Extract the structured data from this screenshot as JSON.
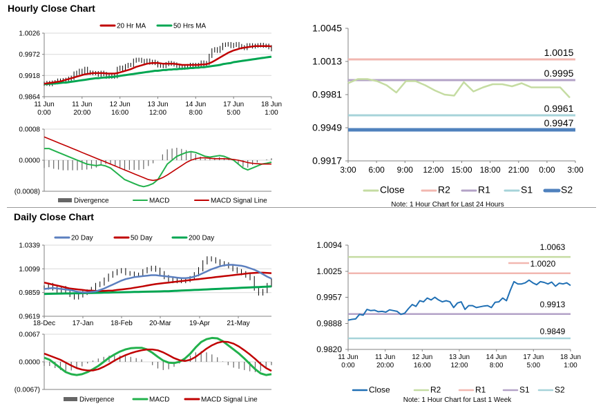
{
  "sections": {
    "hourly_title": "Hourly Close Chart",
    "daily_title": "Daily Close Chart"
  },
  "colors": {
    "ma_red": "#c00000",
    "ma_green": "#00a651",
    "ma_blue": "#5b7fbf",
    "macd_green": "#22b14c",
    "signal_red": "#c00000",
    "divergence": "#666666",
    "close_hourly": "#c5dca2",
    "close_daily": "#1f6fb4",
    "r2_hourly": "#f2b7b0",
    "r1_hourly": "#b3a2c7",
    "s1_hourly": "#a6d3d9",
    "s2_hourly": "#4f81bd",
    "r2_daily": "#c5dca2",
    "r1_daily": "#f2b7b0",
    "s1_daily": "#b3a2c7",
    "s2_daily": "#a6d3d9"
  },
  "chart_data": [
    {
      "id": "hourly_price",
      "type": "line",
      "title": "Hourly Close Chart",
      "legend": [
        "20 Hr MA",
        "50 Hrs MA"
      ],
      "x_ticks": [
        [
          "11 Jun",
          "0:00"
        ],
        [
          "11 Jun",
          "20:00"
        ],
        [
          "12 Jun",
          "16:00"
        ],
        [
          "13 Jun",
          "12:00"
        ],
        [
          "14 Jun",
          "8:00"
        ],
        [
          "17 Jun",
          "5:00"
        ],
        [
          "18 Jun",
          "1:00"
        ]
      ],
      "y_ticks": [
        "1.0026",
        "0.9972",
        "0.9918",
        "0.9864"
      ],
      "ylim": [
        0.9864,
        1.0026
      ],
      "close": [
        0.9897,
        0.9899,
        0.9896,
        0.99,
        0.9901,
        0.9905,
        0.9905,
        0.9906,
        0.9907,
        0.991,
        0.9912,
        0.9923,
        0.9925,
        0.993,
        0.9925,
        0.9935,
        0.9926,
        0.9925,
        0.9924,
        0.9924,
        0.992,
        0.9925,
        0.9922,
        0.9915,
        0.9917,
        0.9915,
        0.9916,
        0.9935,
        0.9938,
        0.9935,
        0.9942,
        0.9945,
        0.9945,
        0.9956,
        0.9958,
        0.9958,
        0.9955,
        0.9952,
        0.9956,
        0.9951,
        0.9953,
        0.995,
        0.9944,
        0.9943,
        0.9942,
        0.9947,
        0.995,
        0.9948,
        0.9946,
        0.9943,
        0.9939,
        0.9938,
        0.9941,
        0.9942,
        0.9945,
        0.9943,
        0.9945,
        0.9944,
        0.9951,
        0.9944,
        0.995,
        0.9968,
        0.9982,
        0.9985,
        0.9981,
        0.9988,
        0.9996,
        0.9997,
        0.9998,
        0.9993,
        0.9996,
        0.9998,
        0.9993,
        0.999,
        0.9988,
        0.9995,
        0.9995,
        0.9992,
        0.9994,
        0.9995,
        0.9996,
        0.9994,
        0.9994,
        0.999,
        0.9985
      ],
      "ma20": [
        0.9897,
        0.9898,
        0.9899,
        0.99,
        0.9901,
        0.9902,
        0.9903,
        0.9905,
        0.9907,
        0.9909,
        0.9911,
        0.9913,
        0.9915,
        0.9917,
        0.9919,
        0.9921,
        0.9922,
        0.9923,
        0.9924,
        0.9924,
        0.9924,
        0.9924,
        0.9924,
        0.9923,
        0.9923,
        0.9923,
        0.9923,
        0.9924,
        0.9926,
        0.9928,
        0.993,
        0.9932,
        0.9934,
        0.9937,
        0.994,
        0.9942,
        0.9944,
        0.9946,
        0.9948,
        0.9949,
        0.995,
        0.995,
        0.995,
        0.9949,
        0.9948,
        0.9948,
        0.9948,
        0.9948,
        0.9948,
        0.9947,
        0.9946,
        0.9945,
        0.9945,
        0.9945,
        0.9945,
        0.9945,
        0.9945,
        0.9945,
        0.9946,
        0.9946,
        0.9947,
        0.9949,
        0.9952,
        0.9956,
        0.996,
        0.9964,
        0.9968,
        0.9972,
        0.9976,
        0.9979,
        0.9982,
        0.9984,
        0.9986,
        0.9988,
        0.9989,
        0.999,
        0.9991,
        0.9992,
        0.9993,
        0.9993,
        0.9993,
        0.9993,
        0.9993,
        0.9993,
        0.9992
      ],
      "ma50": [
        0.9896,
        0.9896,
        0.9897,
        0.9897,
        0.9898,
        0.9898,
        0.9899,
        0.99,
        0.99,
        0.9901,
        0.9902,
        0.9903,
        0.9904,
        0.9905,
        0.9906,
        0.9907,
        0.9908,
        0.9909,
        0.991,
        0.9911,
        0.9911,
        0.9912,
        0.9913,
        0.9913,
        0.9914,
        0.9914,
        0.9915,
        0.9916,
        0.9917,
        0.9918,
        0.9919,
        0.992,
        0.9921,
        0.9922,
        0.9923,
        0.9924,
        0.9925,
        0.9926,
        0.9927,
        0.9928,
        0.9929,
        0.993,
        0.993,
        0.9931,
        0.9932,
        0.9932,
        0.9933,
        0.9933,
        0.9934,
        0.9934,
        0.9935,
        0.9935,
        0.9936,
        0.9936,
        0.9937,
        0.9937,
        0.9938,
        0.9938,
        0.9939,
        0.9939,
        0.994,
        0.9941,
        0.9942,
        0.9943,
        0.9944,
        0.9945,
        0.9947,
        0.9948,
        0.9949,
        0.995,
        0.9952,
        0.9953,
        0.9954,
        0.9955,
        0.9956,
        0.9957,
        0.9958,
        0.9959,
        0.996,
        0.9961,
        0.9962,
        0.9963,
        0.9964,
        0.9965,
        0.9966
      ]
    },
    {
      "id": "hourly_macd",
      "type": "line",
      "legend": [
        "Divergence",
        "MACD",
        "MACD Signal Line"
      ],
      "y_ticks": [
        "0.0008",
        "0.0000",
        "(0.0008)"
      ],
      "ylim": [
        -0.0008,
        0.0008
      ],
      "macd": [
        0.0003,
        0.0003,
        0.00025,
        0.0002,
        0.00015,
        0.0001,
        5e-05,
        0.0,
        -5e-05,
        -0.0001,
        -0.00012,
        -0.00014,
        -0.00012,
        -0.00015,
        -0.0002,
        -0.0003,
        -0.0004,
        -0.0005,
        -0.00055,
        -0.0006,
        -0.00065,
        -0.00068,
        -0.00065,
        -0.0006,
        -0.0005,
        -0.0003,
        -0.0001,
        0.0,
        0.0001,
        0.00015,
        0.0002,
        0.00022,
        0.0002,
        0.00015,
        0.0001,
        8e-05,
        0.0001,
        0.00012,
        0.0001,
        5e-05,
        0.0,
        -0.0001,
        -0.0002,
        -0.00025,
        -0.0002,
        -0.00015,
        -0.0001,
        -8e-05,
        -5e-05
      ],
      "signal": [
        0.0006,
        0.00055,
        0.0005,
        0.00045,
        0.0004,
        0.00035,
        0.0003,
        0.00025,
        0.0002,
        0.00015,
        0.0001,
        5e-05,
        0.0,
        -5e-05,
        -0.0001,
        -0.00015,
        -0.0002,
        -0.00025,
        -0.0003,
        -0.00035,
        -0.0004,
        -0.00045,
        -0.0005,
        -0.00052,
        -0.0005,
        -0.00045,
        -0.00038,
        -0.0003,
        -0.00022,
        -0.00014,
        -6e-05,
        0.0,
        4e-05,
        6e-05,
        6e-05,
        5e-05,
        4e-05,
        4e-05,
        4e-05,
        3e-05,
        2e-05,
        0.0,
        -3e-05,
        -6e-05,
        -8e-05,
        -9e-05,
        -0.0001,
        -0.0001,
        -0.0001
      ],
      "divergence": [
        -0.0002,
        -0.00018,
        -0.00022,
        -0.00024,
        -0.00026,
        -0.00026,
        -0.00026,
        -0.00026,
        -0.00025,
        -0.00024,
        -0.00022,
        -0.00019,
        -0.00012,
        -0.0001,
        -0.0001,
        -0.00015,
        -0.0002,
        -0.00025,
        -0.00025,
        -0.00025,
        -0.00025,
        -0.00023,
        -0.00015,
        -8e-05,
        0.0,
        0.00015,
        0.00028,
        0.0003,
        0.00032,
        0.00029,
        0.00026,
        0.00022,
        0.00016,
        9e-05,
        4e-05,
        3e-05,
        6e-05,
        8e-05,
        6e-05,
        2e-05,
        -2e-05,
        -0.0001,
        -0.00017,
        -0.00019,
        -0.00012,
        -6e-05,
        0.0,
        2e-05,
        5e-05
      ]
    },
    {
      "id": "hourly_levels",
      "type": "line",
      "y_ticks": [
        "1.0045",
        "1.0013",
        "0.9981",
        "0.9949",
        "0.9917"
      ],
      "ylim": [
        0.9917,
        1.0045
      ],
      "x_ticks": [
        "3:00",
        "6:00",
        "9:00",
        "12:00",
        "15:00",
        "18:00",
        "21:00",
        "0:00",
        "3:00"
      ],
      "levels": [
        {
          "name": "R2",
          "value": 1.0015,
          "label": "1.0015",
          "color_key": "r2_hourly"
        },
        {
          "name": "R1",
          "value": 0.9995,
          "label": "0.9995",
          "color_key": "r1_hourly"
        },
        {
          "name": "S1",
          "value": 0.9961,
          "label": "0.9961",
          "color_key": "s1_hourly"
        },
        {
          "name": "S2",
          "value": 0.9947,
          "label": "0.9947",
          "color_key": "s2_hourly"
        }
      ],
      "close": [
        0.9992,
        0.9996,
        0.9996,
        0.9994,
        0.999,
        0.9983,
        0.9994,
        0.9994,
        0.999,
        0.9985,
        0.9981,
        0.998,
        0.9993,
        0.9984,
        0.9988,
        0.9991,
        0.9991,
        0.9989,
        0.9992,
        0.9988,
        0.9988,
        0.9988,
        0.9988,
        0.9978
      ],
      "legend": [
        "Close",
        "R2",
        "R1",
        "S1",
        "S2"
      ],
      "note": "Note: 1 Hour Chart for Last 24 Hours"
    },
    {
      "id": "daily_price",
      "type": "line",
      "title": "Daily Close Chart",
      "legend": [
        "20 Day",
        "50 Day",
        "200 Day"
      ],
      "x_ticks": [
        "18-Dec",
        "17-Jan",
        "18-Feb",
        "20-Mar",
        "19-Apr",
        "21-May"
      ],
      "y_ticks": [
        "1.0339",
        "1.0099",
        "0.9859",
        "0.9619"
      ],
      "ylim": [
        0.9619,
        1.0339
      ],
      "close": [
        0.991,
        0.9935,
        0.99,
        0.988,
        0.9905,
        0.9865,
        0.9835,
        0.981,
        0.983,
        0.9855,
        0.987,
        0.9895,
        0.9935,
        0.995,
        0.999,
        1.003,
        1.0055,
        1.0075,
        1.0085,
        1.0055,
        1.005,
        1.0035,
        1.004,
        1.0075,
        1.0095,
        1.011,
        1.009,
        1.0055,
        1.0015,
        0.999,
        0.9975,
        0.999,
        0.9975,
        0.9985,
        1.0005,
        1.0045,
        1.0095,
        1.0165,
        1.0205,
        1.0195,
        1.0175,
        1.0155,
        1.0145,
        1.0125,
        1.0095,
        1.0075,
        1.0055,
        1.003,
        1.0005,
        0.99,
        0.985,
        0.9875,
        0.9935,
        0.998
      ],
      "ma20": [
        0.9895,
        0.99,
        0.9905,
        0.99,
        0.9895,
        0.989,
        0.9885,
        0.9875,
        0.9865,
        0.986,
        0.986,
        0.9865,
        0.987,
        0.9885,
        0.99,
        0.992,
        0.994,
        0.996,
        0.998,
        0.9995,
        1.0005,
        1.0015,
        1.002,
        1.0025,
        1.003,
        1.0035,
        1.0035,
        1.003,
        1.0025,
        1.002,
        1.0015,
        1.001,
        1.0005,
        1.0005,
        1.001,
        1.002,
        1.0035,
        1.0055,
        1.0075,
        1.0095,
        1.011,
        1.0125,
        1.0135,
        1.014,
        1.014,
        1.0135,
        1.013,
        1.012,
        1.0105,
        1.009,
        1.007,
        1.0045,
        1.002,
        1.0
      ],
      "ma50": [
        0.996,
        0.995,
        0.994,
        0.993,
        0.992,
        0.991,
        0.99,
        0.9895,
        0.989,
        0.9885,
        0.988,
        0.9878,
        0.9876,
        0.9875,
        0.9876,
        0.9878,
        0.988,
        0.9885,
        0.989,
        0.9895,
        0.99,
        0.9908,
        0.9915,
        0.9922,
        0.993,
        0.9938,
        0.9945,
        0.995,
        0.9955,
        0.996,
        0.9965,
        0.997,
        0.9975,
        0.998,
        0.9985,
        0.999,
        0.9995,
        1.0,
        1.0005,
        1.001,
        1.0015,
        1.002,
        1.0025,
        1.003,
        1.0035,
        1.004,
        1.0045,
        1.005,
        1.0055,
        1.0058,
        1.006,
        1.006,
        1.0058,
        1.0055
      ],
      "ma200": [
        0.9845,
        0.9846,
        0.9847,
        0.9848,
        0.9849,
        0.985,
        0.985,
        0.9851,
        0.9852,
        0.9853,
        0.9854,
        0.9855,
        0.9856,
        0.9857,
        0.9858,
        0.9859,
        0.986,
        0.9861,
        0.9862,
        0.9863,
        0.9864,
        0.9865,
        0.9866,
        0.9867,
        0.9868,
        0.9869,
        0.987,
        0.9871,
        0.9872,
        0.9873,
        0.9875,
        0.9877,
        0.9879,
        0.9881,
        0.9883,
        0.9885,
        0.9887,
        0.9889,
        0.9891,
        0.9893,
        0.9895,
        0.9897,
        0.9899,
        0.9901,
        0.9903,
        0.9905,
        0.9907,
        0.9909,
        0.9911,
        0.9913,
        0.9915,
        0.9917,
        0.9919,
        0.9921
      ]
    },
    {
      "id": "daily_macd",
      "type": "line",
      "legend": [
        "Divergence",
        "MACD",
        "MACD Signal Line"
      ],
      "y_ticks": [
        "0.0067",
        "0.0000",
        "(0.0067)"
      ],
      "ylim": [
        -0.0067,
        0.0067
      ],
      "macd": [
        0.001,
        0.0005,
        -0.0005,
        -0.0015,
        -0.0025,
        -0.003,
        -0.0032,
        -0.003,
        -0.0025,
        -0.0018,
        -0.001,
        0.0,
        0.001,
        0.0018,
        0.0025,
        0.003,
        0.0033,
        0.0034,
        0.0034,
        0.003,
        0.0022,
        0.0012,
        0.0003,
        -0.0002,
        -0.0003,
        0.0,
        0.0008,
        0.002,
        0.0035,
        0.0048,
        0.0055,
        0.0058,
        0.0057,
        0.005,
        0.004,
        0.003,
        0.002,
        0.0008,
        -0.0005,
        -0.0018,
        -0.0028,
        -0.0032,
        -0.003
      ],
      "signal": [
        0.002,
        0.0015,
        0.001,
        0.0005,
        -0.0002,
        -0.0009,
        -0.0015,
        -0.0019,
        -0.0021,
        -0.0021,
        -0.0018,
        -0.0012,
        -0.0005,
        0.0003,
        0.001,
        0.0016,
        0.0021,
        0.0025,
        0.0028,
        0.003,
        0.003,
        0.0028,
        0.0023,
        0.0016,
        0.0009,
        0.0004,
        0.0002,
        0.0005,
        0.0012,
        0.0022,
        0.0032,
        0.004,
        0.0046,
        0.0049,
        0.0048,
        0.0044,
        0.0037,
        0.0028,
        0.0018,
        0.0007,
        -0.0005,
        -0.0015,
        -0.0022
      ],
      "divergence": [
        -0.001,
        -0.001,
        -0.0015,
        -0.002,
        -0.0023,
        -0.0021,
        -0.0017,
        -0.0011,
        -0.0004,
        0.0003,
        0.0008,
        0.0012,
        0.0015,
        0.0015,
        0.0015,
        0.0014,
        0.0012,
        0.0009,
        0.0006,
        0.0,
        -0.0008,
        -0.0016,
        -0.002,
        -0.0018,
        -0.0012,
        -0.0004,
        0.0006,
        0.0015,
        0.0023,
        0.0026,
        0.0023,
        0.0018,
        0.0011,
        0.0001,
        -0.0008,
        -0.0014,
        -0.0017,
        -0.002,
        -0.0023,
        -0.0025,
        -0.0023,
        -0.0017,
        -0.0008
      ]
    },
    {
      "id": "daily_levels",
      "type": "line",
      "y_ticks": [
        "1.0094",
        "1.0025",
        "0.9957",
        "0.9888",
        "0.9820"
      ],
      "ylim": [
        0.982,
        1.0094
      ],
      "x_ticks": [
        [
          "11 Jun",
          "0:00"
        ],
        [
          "11 Jun",
          "20:00"
        ],
        [
          "12 Jun",
          "16:00"
        ],
        [
          "13 Jun",
          "12:00"
        ],
        [
          "14 Jun",
          "8:00"
        ],
        [
          "17 Jun",
          "5:00"
        ],
        [
          "18 Jun",
          "1:00"
        ]
      ],
      "levels": [
        {
          "name": "R2",
          "value": 1.0063,
          "label": "1.0063",
          "color_key": "r2_daily"
        },
        {
          "name": "R1",
          "value": 1.002,
          "label": "1.0020",
          "color_key": "r1_daily"
        },
        {
          "name": "S1",
          "value": 0.9913,
          "label": "0.9913",
          "color_key": "s1_daily"
        },
        {
          "name": "S2",
          "value": 0.9849,
          "label": "0.9849",
          "color_key": "s2_daily"
        }
      ],
      "close": [
        0.9897,
        0.9899,
        0.99,
        0.9912,
        0.991,
        0.9925,
        0.9922,
        0.9923,
        0.9919,
        0.992,
        0.9918,
        0.9924,
        0.9922,
        0.992,
        0.9912,
        0.9915,
        0.9927,
        0.9938,
        0.9933,
        0.9948,
        0.9945,
        0.9955,
        0.995,
        0.9957,
        0.995,
        0.9945,
        0.9948,
        0.9945,
        0.993,
        0.9942,
        0.9945,
        0.9925,
        0.9935,
        0.9935,
        0.993,
        0.9932,
        0.9934,
        0.9935,
        0.993,
        0.9944,
        0.9945,
        0.9955,
        0.9948,
        0.9975,
        0.9998,
        0.9992,
        0.9992,
        0.9995,
        1.0002,
        0.9995,
        0.999,
        0.9998,
        0.9996,
        0.9992,
        0.9997,
        0.9986,
        0.9994,
        0.9992,
        0.9995,
        0.9988
      ],
      "legend": [
        "Close",
        "R2",
        "R1",
        "S1",
        "S2"
      ],
      "note": "Note: 1 Hour Chart for Last 1 Week"
    }
  ]
}
